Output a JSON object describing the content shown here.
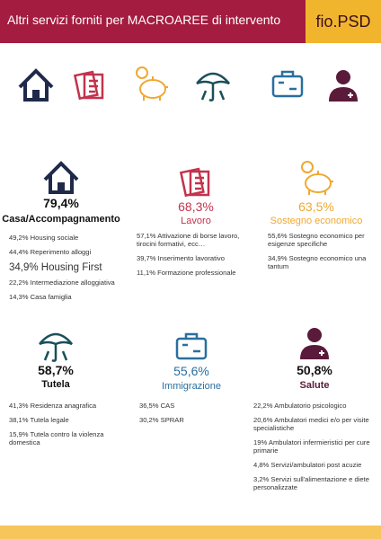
{
  "header": {
    "title": "Altri servizi forniti per MACROAREE di intervento",
    "brand": "fio.PSD"
  },
  "sections": [
    {
      "percent": "79,4%",
      "title": "Casa/Accompagnamento",
      "items": [
        "49,2% Housing sociale",
        "44,4% Reperimento alloggi",
        "34,9% Housing First",
        "22,2% Intermediazione alloggiativa",
        "14,3% Casa famiglia"
      ]
    },
    {
      "percent": "68,3%",
      "title": "Lavoro",
      "items": [
        "57,1% Attivazione di borse lavoro, tirocini formativi, ecc…",
        "39,7% Inserimento lavorativo",
        "11,1% Formazione professionale"
      ]
    },
    {
      "percent": "63,5%",
      "title": "Sostegno economico",
      "items": [
        "55,6% Sostegno economico per esigenze specifiche",
        "34,9% Sostegno economico una tantum"
      ]
    },
    {
      "percent": "58,7%",
      "title": "Tutela",
      "items": [
        "41,3% Residenza anagrafica",
        "38,1% Tutela legale",
        "15,9% Tutela contro la violenza domestica"
      ]
    },
    {
      "percent": "55,6%",
      "title": "Immigrazione",
      "items": [
        "36,5% CAS",
        "30,2% SPRAR"
      ]
    },
    {
      "percent": "50,8%",
      "title": "Salute",
      "items": [
        "22,2% Ambulatorio psicologico",
        "20,6% Ambulatori medici e/o per visite specialistiche",
        "19% Ambulatori infermieristici per cure primarie",
        "4,8% Servizi/ambulatori post acuzie",
        "3,2% Servizi sull'alimentazione e diete personalizzate"
      ]
    }
  ]
}
